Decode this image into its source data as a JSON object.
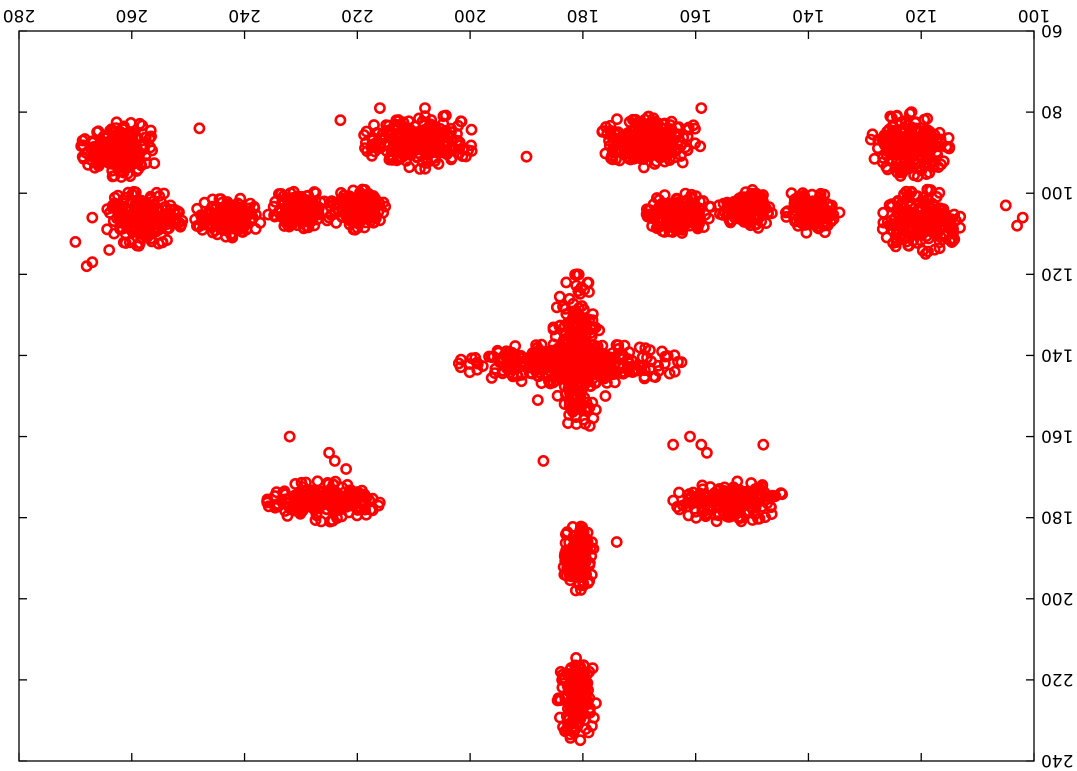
{
  "chart_data": {
    "type": "scatter",
    "title": "",
    "xlabel": "",
    "ylabel": "",
    "rotation_degrees": 180,
    "xlim": [
      100,
      280
    ],
    "ylim": [
      60,
      240
    ],
    "x_ticks": [
      100,
      120,
      140,
      160,
      180,
      200,
      220,
      240,
      260,
      280
    ],
    "y_ticks": [
      60,
      80,
      100,
      120,
      140,
      160,
      180,
      200,
      220,
      240
    ],
    "x_tick_labels": [
      "100",
      "120",
      "140",
      "160",
      "180",
      "200",
      "220",
      "240",
      "260",
      "280"
    ],
    "y_tick_labels": [
      "60",
      "80",
      "100",
      "120",
      "140",
      "160",
      "180",
      "200",
      "220",
      "240"
    ],
    "grid": false,
    "legend": "none",
    "marker": "open-circle",
    "marker_color": "#ff0000",
    "series": [
      {
        "clusters": [
          {
            "shape": "ellipse",
            "center": [
              181,
              224
            ],
            "spread": [
              3.5,
              11
            ]
          },
          {
            "shape": "ellipse",
            "center": [
              181,
              190
            ],
            "spread": [
              3,
              8
            ]
          },
          {
            "shape": "ellipse",
            "center": [
              181,
              140
            ],
            "spread": [
              4.5,
              20
            ]
          },
          {
            "shape": "ellipse",
            "center": [
              182,
              142
            ],
            "spread": [
              20,
              5
            ]
          },
          {
            "shape": "ellipse",
            "center": [
              154,
              176
            ],
            "spread": [
              10,
              5
            ]
          },
          {
            "shape": "ellipse",
            "center": [
              226,
              176
            ],
            "spread": [
              10,
              5
            ]
          },
          {
            "shape": "ellipse",
            "center": [
              230,
              104
            ],
            "spread": [
              6,
              5
            ]
          },
          {
            "shape": "ellipse",
            "center": [
              220,
              104
            ],
            "spread": [
              5,
              5
            ]
          },
          {
            "shape": "ellipse",
            "center": [
              243,
              106
            ],
            "spread": [
              6,
              5
            ]
          },
          {
            "shape": "ellipse",
            "center": [
              258,
              106
            ],
            "spread": [
              7,
              7
            ]
          },
          {
            "shape": "ellipse",
            "center": [
              262,
              89
            ],
            "spread": [
              7,
              7
            ]
          },
          {
            "shape": "ellipse",
            "center": [
              209,
              87
            ],
            "spread": [
              10,
              7
            ]
          },
          {
            "shape": "ellipse",
            "center": [
              168,
              87
            ],
            "spread": [
              9,
              7
            ]
          },
          {
            "shape": "ellipse",
            "center": [
              122,
              88
            ],
            "spread": [
              7,
              8
            ]
          },
          {
            "shape": "ellipse",
            "center": [
              120,
              107
            ],
            "spread": [
              7,
              8
            ]
          },
          {
            "shape": "ellipse",
            "center": [
              139,
              105
            ],
            "spread": [
              5,
              5
            ]
          },
          {
            "shape": "ellipse",
            "center": [
              151,
              104
            ],
            "spread": [
              5,
              5
            ]
          },
          {
            "shape": "ellipse",
            "center": [
              163,
              105
            ],
            "spread": [
              6,
              5
            ]
          }
        ],
        "x": [
          187,
          159,
          161,
          158,
          164,
          148,
          248,
          267,
          268,
          225,
          223,
          216,
          208,
          208,
          190,
          172,
          159,
          188,
          143,
          141,
          105,
          103,
          102,
          136,
          176,
          225,
          270,
          267,
          264,
          224,
          222,
          174,
          232,
          182,
          182,
          184
        ],
        "y": [
          166,
          162,
          160,
          164,
          162,
          162,
          84,
          106,
          118,
          106,
          82,
          79,
          79,
          81,
          91,
          90,
          79,
          151,
          100,
          100,
          103,
          108,
          106,
          107,
          150,
          164,
          112,
          117,
          114,
          166,
          168,
          186,
          160,
          227,
          227,
          225
        ]
      }
    ]
  }
}
